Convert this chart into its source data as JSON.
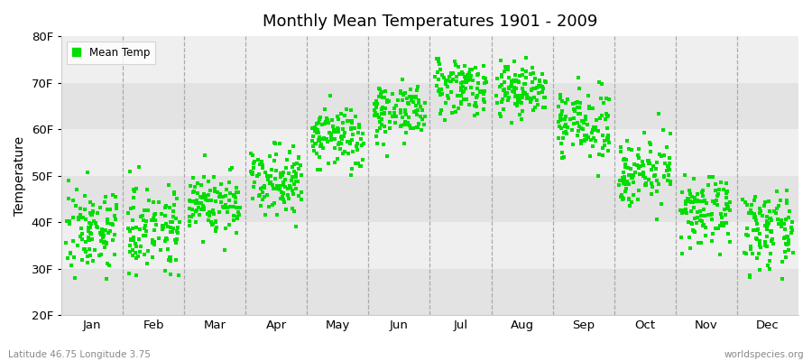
{
  "title": "Monthly Mean Temperatures 1901 - 2009",
  "ylabel": "Temperature",
  "dot_color": "#00dd00",
  "background_color": "#ffffff",
  "plot_bg_color": "#ebebeb",
  "band_colors": [
    "#e3e3e3",
    "#efefef"
  ],
  "ylim": [
    20,
    80
  ],
  "ytick_labels": [
    "20F",
    "30F",
    "40F",
    "50F",
    "60F",
    "70F",
    "80F"
  ],
  "ytick_values": [
    20,
    30,
    40,
    50,
    60,
    70,
    80
  ],
  "months": [
    "Jan",
    "Feb",
    "Mar",
    "Apr",
    "May",
    "Jun",
    "Jul",
    "Aug",
    "Sep",
    "Oct",
    "Nov",
    "Dec"
  ],
  "legend_label": "Mean Temp",
  "footer_left": "Latitude 46.75 Longitude 3.75",
  "footer_right": "worldspecies.org",
  "n_years": 109,
  "monthly_means": [
    38.5,
    39.0,
    44.0,
    49.5,
    58.0,
    64.0,
    69.5,
    68.5,
    61.0,
    51.0,
    42.0,
    38.0
  ],
  "monthly_stds": [
    4.5,
    4.5,
    3.5,
    3.5,
    3.5,
    3.0,
    3.0,
    3.0,
    3.5,
    3.5,
    3.5,
    4.0
  ],
  "seed": 7
}
